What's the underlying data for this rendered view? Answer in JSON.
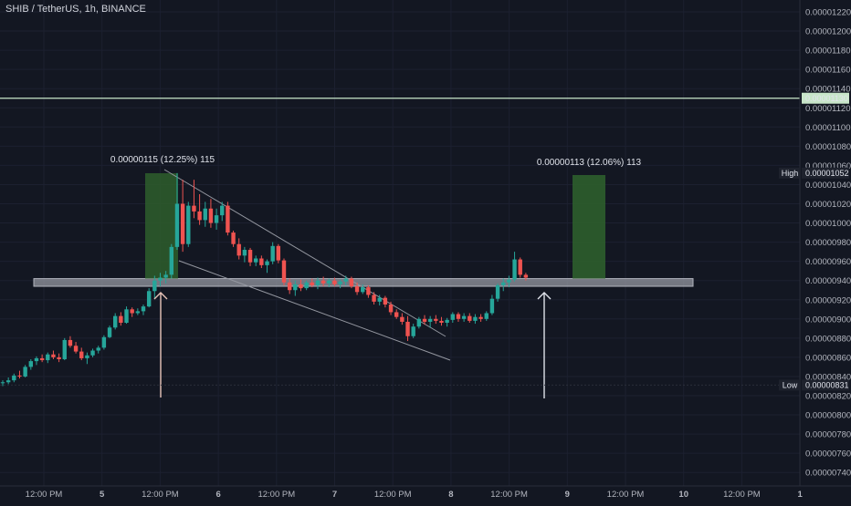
{
  "chart_data": {
    "type": "candlestick",
    "title": "SHIB / TetherUS, 1h, BINANCE",
    "yticks": [
      "0.00001220",
      "0.00001200",
      "0.00001180",
      "0.00001160",
      "0.00001140",
      "0.00001120",
      "0.00001100",
      "0.00001080",
      "0.00001060",
      "0.00001040",
      "0.00001020",
      "0.00001000",
      "0.00000980",
      "0.00000960",
      "0.00000940",
      "0.00000920",
      "0.00000900",
      "0.00000880",
      "0.00000860",
      "0.00000840",
      "0.00000820",
      "0.00000800",
      "0.00000780",
      "0.00000760",
      "0.00000740"
    ],
    "xticks": [
      "12:00 PM",
      "5",
      "12:00 PM",
      "6",
      "12:00 PM",
      "7",
      "12:00 PM",
      "8",
      "12:00 PM",
      "9",
      "12:00 PM",
      "10",
      "12:00 PM",
      "1"
    ],
    "price_line": {
      "value": 1.13e-05,
      "label": "0.00001130",
      "color": "#c8e6c9"
    },
    "high": {
      "tag": "High",
      "value": 1.052e-05,
      "label": "0.00001052"
    },
    "low": {
      "tag": "Low",
      "value": 8.31e-06,
      "label": "0.00000831"
    },
    "measurements": [
      {
        "label": "0.00000115 (12.25%) 115"
      },
      {
        "label": "0.00000113 (12.06%) 113"
      }
    ],
    "support_zone": [
      9.34e-06,
      9.42e-06
    ],
    "colors": {
      "up": "#26a69a",
      "down": "#ef5350",
      "zone": "#9598a1",
      "measure_box": "#2e5e2c"
    },
    "candles": [
      {
        "o": 8.33e-06,
        "h": 8.36e-06,
        "l": 8.3e-06,
        "c": 8.34e-06
      },
      {
        "o": 8.34e-06,
        "h": 8.39e-06,
        "l": 8.32e-06,
        "c": 8.36e-06
      },
      {
        "o": 8.36e-06,
        "h": 8.43e-06,
        "l": 8.34e-06,
        "c": 8.41e-06
      },
      {
        "o": 8.41e-06,
        "h": 8.46e-06,
        "l": 8.38e-06,
        "c": 8.4e-06
      },
      {
        "o": 8.4e-06,
        "h": 8.52e-06,
        "l": 8.39e-06,
        "c": 8.5e-06
      },
      {
        "o": 8.5e-06,
        "h": 8.58e-06,
        "l": 8.47e-06,
        "c": 8.56e-06
      },
      {
        "o": 8.56e-06,
        "h": 8.61e-06,
        "l": 8.52e-06,
        "c": 8.59e-06
      },
      {
        "o": 8.59e-06,
        "h": 8.63e-06,
        "l": 8.55e-06,
        "c": 8.57e-06
      },
      {
        "o": 8.57e-06,
        "h": 8.65e-06,
        "l": 8.54e-06,
        "c": 8.63e-06
      },
      {
        "o": 8.63e-06,
        "h": 8.67e-06,
        "l": 8.58e-06,
        "c": 8.6e-06
      },
      {
        "o": 8.6e-06,
        "h": 8.64e-06,
        "l": 8.55e-06,
        "c": 8.58e-06
      },
      {
        "o": 8.58e-06,
        "h": 8.8e-06,
        "l": 8.57e-06,
        "c": 8.78e-06
      },
      {
        "o": 8.78e-06,
        "h": 8.82e-06,
        "l": 8.7e-06,
        "c": 8.72e-06
      },
      {
        "o": 8.72e-06,
        "h": 8.76e-06,
        "l": 8.64e-06,
        "c": 8.66e-06
      },
      {
        "o": 8.66e-06,
        "h": 8.7e-06,
        "l": 8.57e-06,
        "c": 8.59e-06
      },
      {
        "o": 8.59e-06,
        "h": 8.65e-06,
        "l": 8.53e-06,
        "c": 8.62e-06
      },
      {
        "o": 8.62e-06,
        "h": 8.69e-06,
        "l": 8.6e-06,
        "c": 8.67e-06
      },
      {
        "o": 8.67e-06,
        "h": 8.72e-06,
        "l": 8.64e-06,
        "c": 8.7e-06
      },
      {
        "o": 8.7e-06,
        "h": 8.83e-06,
        "l": 8.68e-06,
        "c": 8.81e-06
      },
      {
        "o": 8.81e-06,
        "h": 8.93e-06,
        "l": 8.8e-06,
        "c": 8.91e-06
      },
      {
        "o": 8.91e-06,
        "h": 9.06e-06,
        "l": 8.89e-06,
        "c": 9.03e-06
      },
      {
        "o": 9.03e-06,
        "h": 9.07e-06,
        "l": 8.93e-06,
        "c": 8.96e-06
      },
      {
        "o": 8.96e-06,
        "h": 9.13e-06,
        "l": 8.95e-06,
        "c": 9.1e-06
      },
      {
        "o": 9.1e-06,
        "h": 9.12e-06,
        "l": 9.02e-06,
        "c": 9.06e-06
      },
      {
        "o": 9.06e-06,
        "h": 9.11e-06,
        "l": 9.04e-06,
        "c": 9.08e-06
      },
      {
        "o": 9.08e-06,
        "h": 9.15e-06,
        "l": 9.04e-06,
        "c": 9.13e-06
      },
      {
        "o": 9.13e-06,
        "h": 9.32e-06,
        "l": 9.12e-06,
        "c": 9.29e-06
      },
      {
        "o": 9.29e-06,
        "h": 9.45e-06,
        "l": 9.21e-06,
        "c": 9.4e-06
      },
      {
        "o": 9.4e-06,
        "h": 9.48e-06,
        "l": 9.34e-06,
        "c": 9.43e-06
      },
      {
        "o": 9.43e-06,
        "h": 9.5e-06,
        "l": 9.37e-06,
        "c": 9.46e-06
      },
      {
        "o": 9.46e-06,
        "h": 9.78e-06,
        "l": 9.42e-06,
        "c": 9.75e-06
      },
      {
        "o": 9.75e-06,
        "h": 1.052e-05,
        "l": 9.72e-06,
        "c": 1.02e-05
      },
      {
        "o": 1.02e-05,
        "h": 1.045e-05,
        "l": 9.7e-06,
        "c": 9.78e-06
      },
      {
        "o": 9.78e-06,
        "h": 1.022e-05,
        "l": 9.75e-06,
        "c": 1.018e-05
      },
      {
        "o": 1.018e-05,
        "h": 1.045e-05,
        "l": 1.005e-05,
        "c": 1.012e-05
      },
      {
        "o": 1.012e-05,
        "h": 1.03e-05,
        "l": 9.98e-06,
        "c": 1.003e-05
      },
      {
        "o": 1.003e-05,
        "h": 1.022e-05,
        "l": 9.96e-06,
        "c": 1.015e-05
      },
      {
        "o": 1.015e-05,
        "h": 1.025e-05,
        "l": 9.95e-06,
        "c": 1e-05
      },
      {
        "o": 1e-05,
        "h": 1.015e-05,
        "l": 9.93e-06,
        "c": 1.008e-05
      },
      {
        "o": 1.008e-05,
        "h": 1.022e-05,
        "l": 1.002e-05,
        "c": 1.018e-05
      },
      {
        "o": 1.018e-05,
        "h": 1.022e-05,
        "l": 9.87e-06,
        "c": 9.9e-06
      },
      {
        "o": 9.9e-06,
        "h": 9.92e-06,
        "l": 9.75e-06,
        "c": 9.78e-06
      },
      {
        "o": 9.78e-06,
        "h": 9.84e-06,
        "l": 9.62e-06,
        "c": 9.66e-06
      },
      {
        "o": 9.66e-06,
        "h": 9.75e-06,
        "l": 9.59e-06,
        "c": 9.72e-06
      },
      {
        "o": 9.72e-06,
        "h": 9.74e-06,
        "l": 9.55e-06,
        "c": 9.59e-06
      },
      {
        "o": 9.59e-06,
        "h": 9.66e-06,
        "l": 9.55e-06,
        "c": 9.63e-06
      },
      {
        "o": 9.63e-06,
        "h": 9.66e-06,
        "l": 9.53e-06,
        "c": 9.56e-06
      },
      {
        "o": 9.56e-06,
        "h": 9.62e-06,
        "l": 9.48e-06,
        "c": 9.6e-06
      },
      {
        "o": 9.6e-06,
        "h": 9.8e-06,
        "l": 9.57e-06,
        "c": 9.76e-06
      },
      {
        "o": 9.76e-06,
        "h": 9.78e-06,
        "l": 9.58e-06,
        "c": 9.61e-06
      },
      {
        "o": 9.61e-06,
        "h": 9.63e-06,
        "l": 9.35e-06,
        "c": 9.38e-06
      },
      {
        "o": 9.38e-06,
        "h": 9.42e-06,
        "l": 9.26e-06,
        "c": 9.3e-06
      },
      {
        "o": 9.3e-06,
        "h": 9.4e-06,
        "l": 9.24e-06,
        "c": 9.36e-06
      },
      {
        "o": 9.36e-06,
        "h": 9.41e-06,
        "l": 9.29e-06,
        "c": 9.32e-06
      },
      {
        "o": 9.32e-06,
        "h": 9.4e-06,
        "l": 9.3e-06,
        "c": 9.38e-06
      },
      {
        "o": 9.38e-06,
        "h": 9.42e-06,
        "l": 9.33e-06,
        "c": 9.35e-06
      },
      {
        "o": 9.35e-06,
        "h": 9.43e-06,
        "l": 9.31e-06,
        "c": 9.4e-06
      },
      {
        "o": 9.4e-06,
        "h": 9.44e-06,
        "l": 9.34e-06,
        "c": 9.37e-06
      },
      {
        "o": 9.37e-06,
        "h": 9.42e-06,
        "l": 9.33e-06,
        "c": 9.4e-06
      },
      {
        "o": 9.4e-06,
        "h": 9.43e-06,
        "l": 9.34e-06,
        "c": 9.36e-06
      },
      {
        "o": 9.36e-06,
        "h": 9.41e-06,
        "l": 9.32e-06,
        "c": 9.39e-06
      },
      {
        "o": 9.39e-06,
        "h": 9.45e-06,
        "l": 9.35e-06,
        "c": 9.42e-06
      },
      {
        "o": 9.42e-06,
        "h": 9.44e-06,
        "l": 9.32e-06,
        "c": 9.34e-06
      },
      {
        "o": 9.34e-06,
        "h": 9.38e-06,
        "l": 9.25e-06,
        "c": 9.28e-06
      },
      {
        "o": 9.28e-06,
        "h": 9.36e-06,
        "l": 9.26e-06,
        "c": 9.33e-06
      },
      {
        "o": 9.33e-06,
        "h": 9.35e-06,
        "l": 9.22e-06,
        "c": 9.25e-06
      },
      {
        "o": 9.25e-06,
        "h": 9.28e-06,
        "l": 9.15e-06,
        "c": 9.18e-06
      },
      {
        "o": 9.18e-06,
        "h": 9.25e-06,
        "l": 9.14e-06,
        "c": 9.22e-06
      },
      {
        "o": 9.22e-06,
        "h": 9.24e-06,
        "l": 9.12e-06,
        "c": 9.15e-06
      },
      {
        "o": 9.15e-06,
        "h": 9.18e-06,
        "l": 9.04e-06,
        "c": 9.07e-06
      },
      {
        "o": 9.07e-06,
        "h": 9.1e-06,
        "l": 9e-06,
        "c": 9.02e-06
      },
      {
        "o": 9.02e-06,
        "h": 9.06e-06,
        "l": 8.94e-06,
        "c": 8.97e-06
      },
      {
        "o": 8.97e-06,
        "h": 9.03e-06,
        "l": 8.77e-06,
        "c": 8.82e-06
      },
      {
        "o": 8.82e-06,
        "h": 8.95e-06,
        "l": 8.8e-06,
        "c": 8.92e-06
      },
      {
        "o": 8.92e-06,
        "h": 9.02e-06,
        "l": 8.9e-06,
        "c": 9e-06
      },
      {
        "o": 9e-06,
        "h": 9.04e-06,
        "l": 8.94e-06,
        "c": 8.97e-06
      },
      {
        "o": 8.97e-06,
        "h": 9.03e-06,
        "l": 8.91e-06,
        "c": 9e-06
      },
      {
        "o": 9e-06,
        "h": 9.04e-06,
        "l": 8.95e-06,
        "c": 8.98e-06
      },
      {
        "o": 8.98e-06,
        "h": 9.02e-06,
        "l": 8.93e-06,
        "c": 8.96e-06
      },
      {
        "o": 8.96e-06,
        "h": 9.01e-06,
        "l": 8.92e-06,
        "c": 8.99e-06
      },
      {
        "o": 8.99e-06,
        "h": 9.07e-06,
        "l": 8.96e-06,
        "c": 9.05e-06
      },
      {
        "o": 9.05e-06,
        "h": 9.07e-06,
        "l": 8.97e-06,
        "c": 9e-06
      },
      {
        "o": 9e-06,
        "h": 9.06e-06,
        "l": 8.97e-06,
        "c": 9.03e-06
      },
      {
        "o": 9.03e-06,
        "h": 9.06e-06,
        "l": 8.96e-06,
        "c": 8.98e-06
      },
      {
        "o": 8.98e-06,
        "h": 9.05e-06,
        "l": 8.95e-06,
        "c": 9.02e-06
      },
      {
        "o": 9.02e-06,
        "h": 9.05e-06,
        "l": 8.97e-06,
        "c": 9e-06
      },
      {
        "o": 9e-06,
        "h": 9.08e-06,
        "l": 8.98e-06,
        "c": 9.06e-06
      },
      {
        "o": 9.06e-06,
        "h": 9.25e-06,
        "l": 9.04e-06,
        "c": 9.21e-06
      },
      {
        "o": 9.21e-06,
        "h": 9.37e-06,
        "l": 9.18e-06,
        "c": 9.35e-06
      },
      {
        "o": 9.35e-06,
        "h": 9.42e-06,
        "l": 9.29e-06,
        "c": 9.38e-06
      },
      {
        "o": 9.38e-06,
        "h": 9.45e-06,
        "l": 9.33e-06,
        "c": 9.41e-06
      },
      {
        "o": 9.41e-06,
        "h": 9.7e-06,
        "l": 9.39e-06,
        "c": 9.62e-06
      },
      {
        "o": 9.62e-06,
        "h": 9.64e-06,
        "l": 9.43e-06,
        "c": 9.46e-06
      },
      {
        "o": 9.46e-06,
        "h": 9.48e-06,
        "l": 9.4e-06,
        "c": 9.43e-06
      }
    ]
  }
}
